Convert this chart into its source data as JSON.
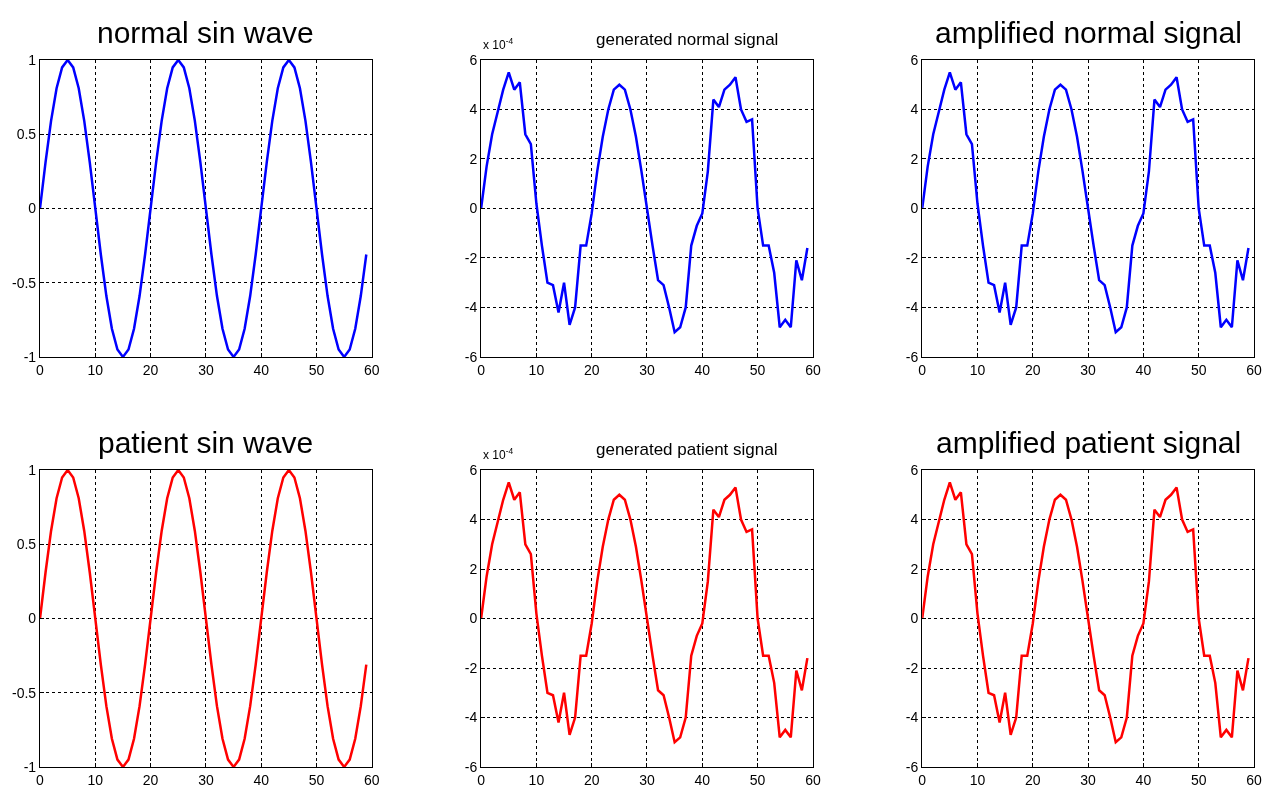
{
  "chart_data": [
    {
      "type": "line",
      "title": "normal sin wave",
      "x": [
        0,
        1,
        2,
        3,
        4,
        5,
        6,
        7,
        8,
        9,
        10,
        11,
        12,
        13,
        14,
        15,
        16,
        17,
        18,
        19,
        20,
        21,
        22,
        23,
        24,
        25,
        26,
        27,
        28,
        29,
        30,
        31,
        32,
        33,
        34,
        35,
        36,
        37,
        38,
        39,
        40,
        41,
        42,
        43,
        44,
        45,
        46,
        47,
        48,
        49,
        50,
        51,
        52,
        53,
        54,
        55,
        56,
        57,
        58,
        59
      ],
      "series": [
        {
          "color": "#0000ff",
          "values": [
            0,
            0.31,
            0.59,
            0.81,
            0.95,
            1,
            0.95,
            0.81,
            0.59,
            0.31,
            0,
            -0.31,
            -0.59,
            -0.81,
            -0.95,
            -1,
            -0.95,
            -0.81,
            -0.59,
            -0.31,
            0,
            0.31,
            0.59,
            0.81,
            0.95,
            1,
            0.95,
            0.81,
            0.59,
            0.31,
            0,
            -0.31,
            -0.59,
            -0.81,
            -0.95,
            -1,
            -0.95,
            -0.81,
            -0.59,
            -0.31,
            0,
            0.31,
            0.59,
            0.81,
            0.95,
            1,
            0.95,
            0.81,
            0.59,
            0.31,
            0,
            -0.31,
            -0.59,
            -0.81,
            -0.95,
            -1,
            -0.95,
            -0.81,
            -0.59,
            -0.31
          ]
        }
      ],
      "xlim": [
        0,
        60
      ],
      "xticks": [
        0,
        10,
        20,
        30,
        40,
        50,
        60
      ],
      "ylim": [
        -1,
        1
      ],
      "yticks": [
        -1,
        -0.5,
        0,
        0.5,
        1
      ],
      "grid": true
    },
    {
      "type": "line",
      "title": "generated normal signal",
      "annotations": [
        "x 10$^{-4}$"
      ],
      "x": [
        0,
        1,
        2,
        3,
        4,
        5,
        6,
        7,
        8,
        9,
        10,
        11,
        12,
        13,
        14,
        15,
        16,
        17,
        18,
        19,
        20,
        21,
        22,
        23,
        24,
        25,
        26,
        27,
        28,
        29,
        30,
        31,
        32,
        33,
        34,
        35,
        36,
        37,
        38,
        39,
        40,
        41,
        42,
        43,
        44,
        45,
        46,
        47,
        48,
        49,
        50,
        51,
        52,
        53,
        54,
        55,
        56,
        57,
        58,
        59
      ],
      "series": [
        {
          "color": "#0000ff",
          "values": [
            0,
            1.7,
            3.0,
            3.9,
            4.8,
            5.5,
            4.8,
            5.1,
            3.0,
            2.6,
            0.2,
            -1.5,
            -3.0,
            -3.1,
            -4.2,
            -3.0,
            -4.7,
            -4.0,
            -1.5,
            -1.5,
            -0.2,
            1.5,
            2.9,
            4.0,
            4.8,
            5.0,
            4.8,
            4.0,
            2.9,
            1.5,
            0,
            -1.5,
            -2.9,
            -3.1,
            -4.0,
            -5.0,
            -4.8,
            -4.0,
            -1.5,
            -0.7,
            -0.2,
            1.5,
            4.4,
            4.1,
            4.8,
            5.0,
            5.3,
            4.0,
            3.5,
            3.6,
            0,
            -1.5,
            -1.5,
            -2.6,
            -4.8,
            -4.5,
            -4.8,
            -2.1,
            -2.9,
            -1.6
          ]
        }
      ],
      "xlim": [
        0,
        60
      ],
      "xticks": [
        0,
        10,
        20,
        30,
        40,
        50,
        60
      ],
      "ylim": [
        -6,
        6
      ],
      "yticks": [
        -6,
        -4,
        -2,
        0,
        2,
        4,
        6
      ],
      "grid": true
    },
    {
      "type": "line",
      "title": "amplified normal signal",
      "x": [
        0,
        1,
        2,
        3,
        4,
        5,
        6,
        7,
        8,
        9,
        10,
        11,
        12,
        13,
        14,
        15,
        16,
        17,
        18,
        19,
        20,
        21,
        22,
        23,
        24,
        25,
        26,
        27,
        28,
        29,
        30,
        31,
        32,
        33,
        34,
        35,
        36,
        37,
        38,
        39,
        40,
        41,
        42,
        43,
        44,
        45,
        46,
        47,
        48,
        49,
        50,
        51,
        52,
        53,
        54,
        55,
        56,
        57,
        58,
        59
      ],
      "series": [
        {
          "color": "#0000ff",
          "values": [
            0,
            1.7,
            3.0,
            3.9,
            4.8,
            5.5,
            4.8,
            5.1,
            3.0,
            2.6,
            0.2,
            -1.5,
            -3.0,
            -3.1,
            -4.2,
            -3.0,
            -4.7,
            -4.0,
            -1.5,
            -1.5,
            -0.2,
            1.5,
            2.9,
            4.0,
            4.8,
            5.0,
            4.8,
            4.0,
            2.9,
            1.5,
            0,
            -1.5,
            -2.9,
            -3.1,
            -4.0,
            -5.0,
            -4.8,
            -4.0,
            -1.5,
            -0.7,
            -0.2,
            1.5,
            4.4,
            4.1,
            4.8,
            5.0,
            5.3,
            4.0,
            3.5,
            3.6,
            0,
            -1.5,
            -1.5,
            -2.6,
            -4.8,
            -4.5,
            -4.8,
            -2.1,
            -2.9,
            -1.6
          ]
        }
      ],
      "xlim": [
        0,
        60
      ],
      "xticks": [
        0,
        10,
        20,
        30,
        40,
        50,
        60
      ],
      "ylim": [
        -6,
        6
      ],
      "yticks": [
        -6,
        -4,
        -2,
        0,
        2,
        4,
        6
      ],
      "grid": true
    },
    {
      "type": "line",
      "title": "patient sin wave",
      "x": [
        0,
        1,
        2,
        3,
        4,
        5,
        6,
        7,
        8,
        9,
        10,
        11,
        12,
        13,
        14,
        15,
        16,
        17,
        18,
        19,
        20,
        21,
        22,
        23,
        24,
        25,
        26,
        27,
        28,
        29,
        30,
        31,
        32,
        33,
        34,
        35,
        36,
        37,
        38,
        39,
        40,
        41,
        42,
        43,
        44,
        45,
        46,
        47,
        48,
        49,
        50,
        51,
        52,
        53,
        54,
        55,
        56,
        57,
        58,
        59
      ],
      "series": [
        {
          "color": "#ff0000",
          "values": [
            0,
            0.31,
            0.59,
            0.81,
            0.95,
            1,
            0.95,
            0.81,
            0.59,
            0.31,
            0,
            -0.31,
            -0.59,
            -0.81,
            -0.95,
            -1,
            -0.95,
            -0.81,
            -0.59,
            -0.31,
            0,
            0.31,
            0.59,
            0.81,
            0.95,
            1,
            0.95,
            0.81,
            0.59,
            0.31,
            0,
            -0.31,
            -0.59,
            -0.81,
            -0.95,
            -1,
            -0.95,
            -0.81,
            -0.59,
            -0.31,
            0,
            0.31,
            0.59,
            0.81,
            0.95,
            1,
            0.95,
            0.81,
            0.59,
            0.31,
            0,
            -0.31,
            -0.59,
            -0.81,
            -0.95,
            -1,
            -0.95,
            -0.81,
            -0.59,
            -0.31
          ]
        }
      ],
      "xlim": [
        0,
        60
      ],
      "xticks": [
        0,
        10,
        20,
        30,
        40,
        50,
        60
      ],
      "ylim": [
        -1,
        1
      ],
      "yticks": [
        -1,
        -0.5,
        0,
        0.5,
        1
      ],
      "grid": true
    },
    {
      "type": "line",
      "title": "generated patient signal",
      "annotations": [
        "x 10$^{-4}$"
      ],
      "x": [
        0,
        1,
        2,
        3,
        4,
        5,
        6,
        7,
        8,
        9,
        10,
        11,
        12,
        13,
        14,
        15,
        16,
        17,
        18,
        19,
        20,
        21,
        22,
        23,
        24,
        25,
        26,
        27,
        28,
        29,
        30,
        31,
        32,
        33,
        34,
        35,
        36,
        37,
        38,
        39,
        40,
        41,
        42,
        43,
        44,
        45,
        46,
        47,
        48,
        49,
        50,
        51,
        52,
        53,
        54,
        55,
        56,
        57,
        58,
        59
      ],
      "series": [
        {
          "color": "#ff0000",
          "values": [
            0,
            1.7,
            3.0,
            3.9,
            4.8,
            5.5,
            4.8,
            5.1,
            3.0,
            2.6,
            0.2,
            -1.5,
            -3.0,
            -3.1,
            -4.2,
            -3.0,
            -4.7,
            -4.0,
            -1.5,
            -1.5,
            -0.2,
            1.5,
            2.9,
            4.0,
            4.8,
            5.0,
            4.8,
            4.0,
            2.9,
            1.5,
            0,
            -1.5,
            -2.9,
            -3.1,
            -4.0,
            -5.0,
            -4.8,
            -4.0,
            -1.5,
            -0.7,
            -0.2,
            1.5,
            4.4,
            4.1,
            4.8,
            5.0,
            5.3,
            4.0,
            3.5,
            3.6,
            0,
            -1.5,
            -1.5,
            -2.6,
            -4.8,
            -4.5,
            -4.8,
            -2.1,
            -2.9,
            -1.6
          ]
        }
      ],
      "xlim": [
        0,
        60
      ],
      "xticks": [
        0,
        10,
        20,
        30,
        40,
        50,
        60
      ],
      "ylim": [
        -6,
        6
      ],
      "yticks": [
        -6,
        -4,
        -2,
        0,
        2,
        4,
        6
      ],
      "grid": true
    },
    {
      "type": "line",
      "title": "amplified patient signal",
      "x": [
        0,
        1,
        2,
        3,
        4,
        5,
        6,
        7,
        8,
        9,
        10,
        11,
        12,
        13,
        14,
        15,
        16,
        17,
        18,
        19,
        20,
        21,
        22,
        23,
        24,
        25,
        26,
        27,
        28,
        29,
        30,
        31,
        32,
        33,
        34,
        35,
        36,
        37,
        38,
        39,
        40,
        41,
        42,
        43,
        44,
        45,
        46,
        47,
        48,
        49,
        50,
        51,
        52,
        53,
        54,
        55,
        56,
        57,
        58,
        59
      ],
      "series": [
        {
          "color": "#ff0000",
          "values": [
            0,
            1.7,
            3.0,
            3.9,
            4.8,
            5.5,
            4.8,
            5.1,
            3.0,
            2.6,
            0.2,
            -1.5,
            -3.0,
            -3.1,
            -4.2,
            -3.0,
            -4.7,
            -4.0,
            -1.5,
            -1.5,
            -0.2,
            1.5,
            2.9,
            4.0,
            4.8,
            5.0,
            4.8,
            4.0,
            2.9,
            1.5,
            0,
            -1.5,
            -2.9,
            -3.1,
            -4.0,
            -5.0,
            -4.8,
            -4.0,
            -1.5,
            -0.7,
            -0.2,
            1.5,
            4.4,
            4.1,
            4.8,
            5.0,
            5.3,
            4.0,
            3.5,
            3.6,
            0,
            -1.5,
            -1.5,
            -2.6,
            -4.8,
            -4.5,
            -4.8,
            -2.1,
            -2.9,
            -1.6
          ]
        }
      ],
      "xlim": [
        0,
        60
      ],
      "xticks": [
        0,
        10,
        20,
        30,
        40,
        50,
        60
      ],
      "ylim": [
        -6,
        6
      ],
      "yticks": [
        -6,
        -4,
        -2,
        0,
        2,
        4,
        6
      ],
      "grid": true
    }
  ]
}
